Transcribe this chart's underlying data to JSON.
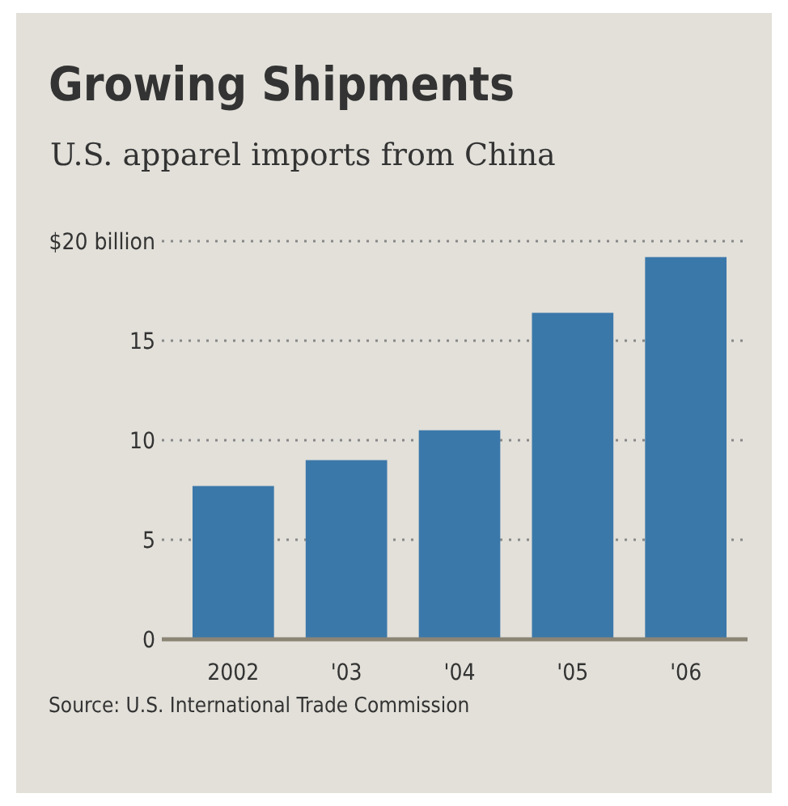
{
  "chart_data": {
    "type": "bar",
    "title": "Growing Shipments",
    "subtitle": "U.S. apparel imports from China",
    "categories": [
      "2002",
      "'03",
      "'04",
      "'05",
      "'06"
    ],
    "values": [
      7.7,
      9.0,
      10.5,
      16.4,
      19.2
    ],
    "color": "#3b78aa",
    "ylim": [
      0,
      20
    ],
    "yticks": [
      0,
      5,
      10,
      15,
      {
        "value": 20,
        "label": "$20 billion"
      }
    ],
    "grid": "y",
    "annotations": [
      "Source: U.S. International Trade Commission"
    ]
  }
}
